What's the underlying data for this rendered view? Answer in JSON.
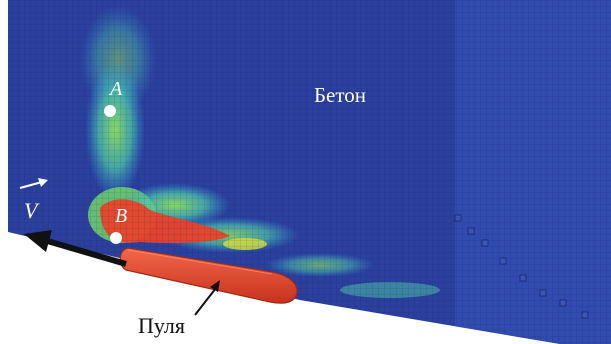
{
  "labels": {
    "material": "Бетон",
    "point_a": "A",
    "point_b": "B",
    "velocity": "V",
    "bullet": "Пуля"
  },
  "colors": {
    "background": "#ffffff",
    "concrete_base": "#2b3f9d",
    "concrete_light": "#3550b4",
    "stress_cyan": "#2fb6d6",
    "stress_green": "#6fd36b",
    "stress_yellow": "#d9df3a",
    "stress_red": "#e8432a",
    "bullet": "#e2452a",
    "arrow": "#111111",
    "marker": "#ffffff"
  }
}
